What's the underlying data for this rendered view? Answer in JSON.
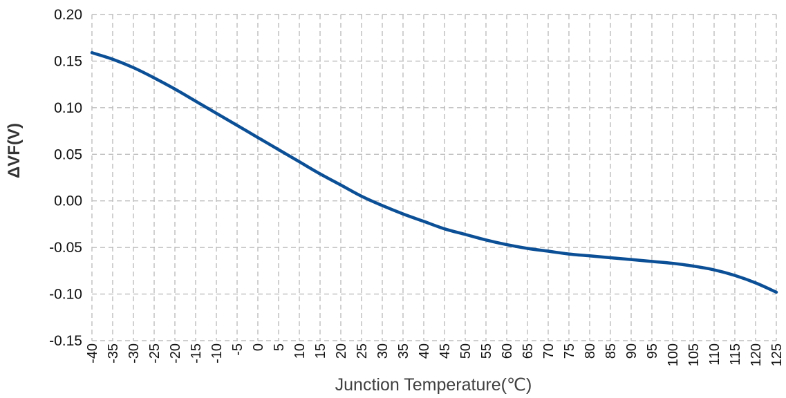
{
  "chart_data": {
    "type": "line",
    "title": "",
    "xlabel": "Junction Temperature(℃)",
    "ylabel": "ΔVF(V)",
    "xlim": [
      -40,
      125
    ],
    "ylim": [
      -0.15,
      0.2
    ],
    "grid": true,
    "x_ticks": [
      "-40",
      "-35",
      "-30",
      "-25",
      "-20",
      "-15",
      "-10",
      "-5",
      "0",
      "5",
      "10",
      "15",
      "20",
      "25",
      "30",
      "35",
      "40",
      "45",
      "50",
      "55",
      "60",
      "65",
      "70",
      "75",
      "80",
      "85",
      "90",
      "95",
      "100",
      "105",
      "110",
      "115",
      "120",
      "125"
    ],
    "y_ticks": [
      "0.20",
      "0.15",
      "0.10",
      "0.05",
      "0.00",
      "-0.05",
      "-0.10",
      "-0.15"
    ],
    "series": [
      {
        "color": "#0b4f96",
        "x": [
          -40,
          -35,
          -30,
          -25,
          -20,
          -15,
          -10,
          -5,
          0,
          5,
          10,
          15,
          20,
          25,
          30,
          35,
          40,
          45,
          50,
          55,
          60,
          65,
          70,
          75,
          80,
          85,
          90,
          95,
          100,
          105,
          110,
          115,
          120,
          125
        ],
        "y": [
          0.159,
          0.152,
          0.143,
          0.132,
          0.12,
          0.107,
          0.094,
          0.081,
          0.068,
          0.055,
          0.042,
          0.029,
          0.017,
          0.005,
          -0.005,
          -0.014,
          -0.022,
          -0.03,
          -0.036,
          -0.042,
          -0.047,
          -0.051,
          -0.054,
          -0.057,
          -0.059,
          -0.061,
          -0.063,
          -0.065,
          -0.067,
          -0.07,
          -0.074,
          -0.08,
          -0.088,
          -0.098
        ]
      }
    ]
  }
}
